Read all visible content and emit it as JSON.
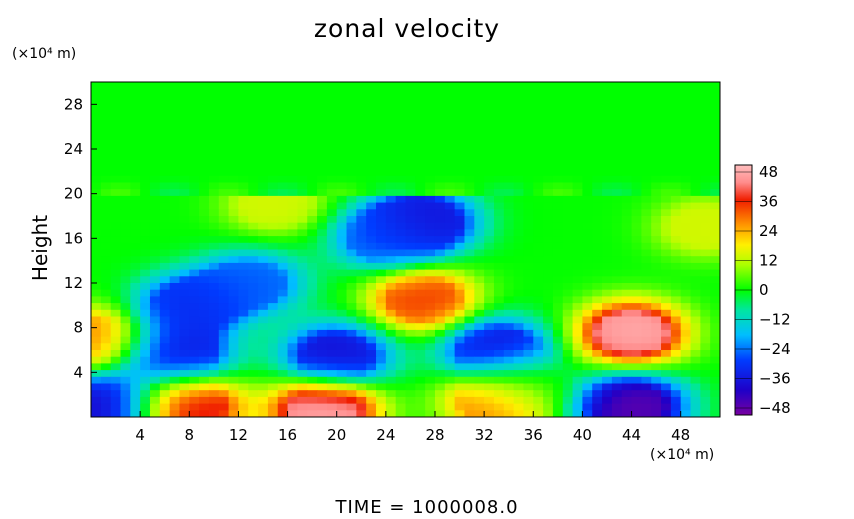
{
  "chart_data": {
    "type": "heatmap",
    "title": "zonal velocity",
    "ylabel": "Height",
    "xlabel": "",
    "x_unit": "(×10⁴ m)",
    "y_unit": "(×10⁴ m)",
    "x_ticks": [
      4,
      8,
      12,
      16,
      20,
      24,
      28,
      32,
      36,
      40,
      44,
      48
    ],
    "y_ticks": [
      4,
      8,
      12,
      16,
      20,
      24,
      28
    ],
    "xlim": [
      0,
      51.2
    ],
    "ylim": [
      0,
      30
    ],
    "colorbar": {
      "ticks": [
        48,
        36,
        24,
        12,
        0,
        -12,
        -24,
        -36,
        -48
      ],
      "range": [
        -48,
        48
      ],
      "colormap": "rainbow"
    },
    "features": [
      {
        "x": 0,
        "y": 7,
        "value": 28
      },
      {
        "x": 8,
        "y": 10,
        "value": -32
      },
      {
        "x": 7,
        "y": 5.5,
        "value": -36
      },
      {
        "x": 13,
        "y": 12,
        "value": -26
      },
      {
        "x": 20,
        "y": 5.5,
        "value": -38
      },
      {
        "x": 24,
        "y": 16,
        "value": -26
      },
      {
        "x": 27,
        "y": 17.5,
        "value": -38
      },
      {
        "x": 27,
        "y": 10.5,
        "value": 34
      },
      {
        "x": 33,
        "y": 6,
        "value": -38
      },
      {
        "x": 33,
        "y": 1.5,
        "value": 30
      },
      {
        "x": 19,
        "y": 0.6,
        "value": 48
      },
      {
        "x": 8,
        "y": 1,
        "value": 40
      },
      {
        "x": 44,
        "y": 7.5,
        "value": 48
      },
      {
        "x": 44,
        "y": 1,
        "value": -48
      },
      {
        "x": 15,
        "y": 19,
        "value": 14
      },
      {
        "x": 50,
        "y": 17,
        "value": 14
      },
      {
        "x": 1,
        "y": 1,
        "value": -40
      },
      {
        "x": 36,
        "y": 3,
        "value": 0
      }
    ],
    "upper_region": {
      "y_from": 20,
      "y_to": 30,
      "value": 0
    }
  },
  "footer": {
    "time_text": "TIME  =  1000008.0"
  }
}
